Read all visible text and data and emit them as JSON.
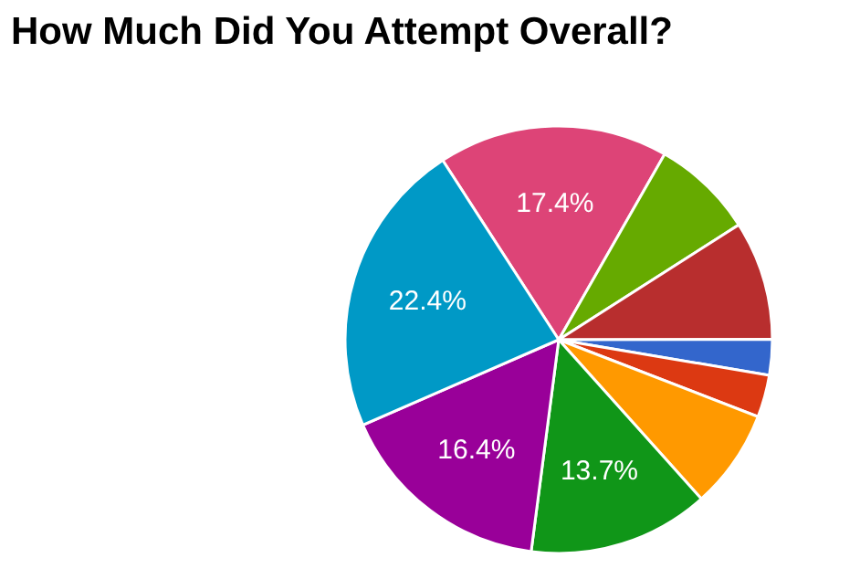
{
  "chart_data": {
    "type": "pie",
    "title": "How Much Did You Attempt Overall?",
    "categories": [
      null,
      null,
      null,
      null,
      null,
      null,
      null,
      null,
      null
    ],
    "values": [
      17.4,
      7.7,
      9.0,
      2.7,
      3.2,
      7.5,
      13.7,
      16.4,
      22.4
    ],
    "colors": [
      "#dd4477",
      "#66aa00",
      "#b82e2e",
      "#3366cc",
      "#dc3912",
      "#ff9900",
      "#109618",
      "#990099",
      "#0099c6"
    ],
    "value_labels": [
      "17.4%",
      null,
      null,
      null,
      null,
      null,
      "13.7%",
      "16.4%",
      "22.4%"
    ]
  }
}
